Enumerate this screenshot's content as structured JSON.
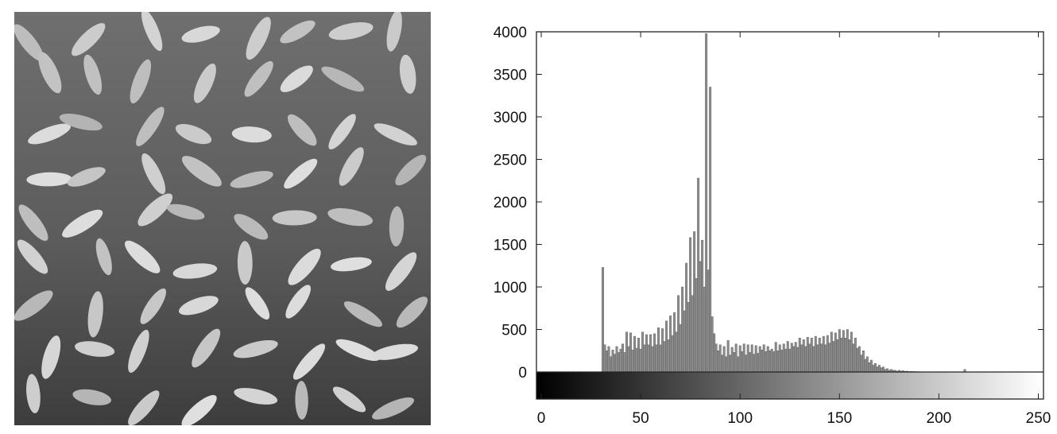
{
  "image": {
    "subject": "grayscale image of rice grains on a darker background"
  },
  "chart_data": {
    "type": "bar",
    "title": "",
    "xlabel": "",
    "ylabel": "",
    "xlim": [
      0,
      255
    ],
    "ylim": [
      0,
      4000
    ],
    "xticks": [
      0,
      50,
      100,
      150,
      200,
      250
    ],
    "yticks": [
      0,
      500,
      1000,
      1500,
      2000,
      2500,
      3000,
      3500,
      4000
    ],
    "grid": false,
    "legend": "none",
    "colorbar": "grayscale ramp 0 (black) to 255 (white) under the x axis",
    "bins": [
      [
        31,
        1230
      ],
      [
        32,
        320
      ],
      [
        33,
        250
      ],
      [
        34,
        300
      ],
      [
        35,
        180
      ],
      [
        36,
        260
      ],
      [
        37,
        210
      ],
      [
        38,
        300
      ],
      [
        39,
        230
      ],
      [
        40,
        270
      ],
      [
        41,
        330
      ],
      [
        42,
        230
      ],
      [
        43,
        470
      ],
      [
        44,
        300
      ],
      [
        45,
        460
      ],
      [
        46,
        260
      ],
      [
        47,
        420
      ],
      [
        48,
        280
      ],
      [
        49,
        400
      ],
      [
        50,
        270
      ],
      [
        51,
        470
      ],
      [
        52,
        320
      ],
      [
        53,
        440
      ],
      [
        54,
        320
      ],
      [
        55,
        440
      ],
      [
        56,
        300
      ],
      [
        57,
        450
      ],
      [
        58,
        320
      ],
      [
        59,
        520
      ],
      [
        60,
        320
      ],
      [
        61,
        510
      ],
      [
        62,
        360
      ],
      [
        63,
        600
      ],
      [
        64,
        380
      ],
      [
        65,
        660
      ],
      [
        66,
        430
      ],
      [
        67,
        700
      ],
      [
        68,
        470
      ],
      [
        69,
        900
      ],
      [
        70,
        560
      ],
      [
        71,
        1000
      ],
      [
        72,
        720
      ],
      [
        73,
        1280
      ],
      [
        74,
        820
      ],
      [
        75,
        1580
      ],
      [
        76,
        900
      ],
      [
        77,
        1650
      ],
      [
        78,
        1100
      ],
      [
        79,
        2280
      ],
      [
        80,
        1300
      ],
      [
        81,
        1550
      ],
      [
        82,
        1000
      ],
      [
        83,
        3980
      ],
      [
        84,
        1200
      ],
      [
        85,
        3350
      ],
      [
        86,
        650
      ],
      [
        87,
        450
      ],
      [
        88,
        330
      ],
      [
        89,
        250
      ],
      [
        90,
        320
      ],
      [
        91,
        200
      ],
      [
        92,
        300
      ],
      [
        93,
        180
      ],
      [
        94,
        370
      ],
      [
        95,
        200
      ],
      [
        96,
        290
      ],
      [
        97,
        230
      ],
      [
        98,
        330
      ],
      [
        99,
        180
      ],
      [
        100,
        310
      ],
      [
        101,
        240
      ],
      [
        102,
        330
      ],
      [
        103,
        200
      ],
      [
        104,
        320
      ],
      [
        105,
        230
      ],
      [
        106,
        320
      ],
      [
        107,
        210
      ],
      [
        108,
        310
      ],
      [
        109,
        220
      ],
      [
        110,
        300
      ],
      [
        111,
        260
      ],
      [
        112,
        320
      ],
      [
        113,
        240
      ],
      [
        114,
        300
      ],
      [
        115,
        250
      ],
      [
        116,
        270
      ],
      [
        117,
        240
      ],
      [
        118,
        350
      ],
      [
        119,
        250
      ],
      [
        120,
        320
      ],
      [
        121,
        260
      ],
      [
        122,
        330
      ],
      [
        123,
        270
      ],
      [
        124,
        360
      ],
      [
        125,
        270
      ],
      [
        126,
        340
      ],
      [
        127,
        300
      ],
      [
        128,
        350
      ],
      [
        129,
        290
      ],
      [
        130,
        400
      ],
      [
        131,
        320
      ],
      [
        132,
        380
      ],
      [
        133,
        300
      ],
      [
        134,
        410
      ],
      [
        135,
        330
      ],
      [
        136,
        400
      ],
      [
        137,
        300
      ],
      [
        138,
        420
      ],
      [
        139,
        320
      ],
      [
        140,
        400
      ],
      [
        141,
        330
      ],
      [
        142,
        420
      ],
      [
        143,
        320
      ],
      [
        144,
        430
      ],
      [
        145,
        340
      ],
      [
        146,
        470
      ],
      [
        147,
        360
      ],
      [
        148,
        460
      ],
      [
        149,
        380
      ],
      [
        150,
        500
      ],
      [
        151,
        400
      ],
      [
        152,
        490
      ],
      [
        153,
        400
      ],
      [
        154,
        500
      ],
      [
        155,
        380
      ],
      [
        156,
        470
      ],
      [
        157,
        330
      ],
      [
        158,
        400
      ],
      [
        159,
        280
      ],
      [
        160,
        300
      ],
      [
        161,
        200
      ],
      [
        162,
        250
      ],
      [
        163,
        150
      ],
      [
        164,
        180
      ],
      [
        165,
        110
      ],
      [
        166,
        140
      ],
      [
        167,
        80
      ],
      [
        168,
        100
      ],
      [
        169,
        60
      ],
      [
        170,
        80
      ],
      [
        171,
        50
      ],
      [
        172,
        60
      ],
      [
        173,
        30
      ],
      [
        174,
        40
      ],
      [
        175,
        20
      ],
      [
        176,
        30
      ],
      [
        177,
        20
      ],
      [
        178,
        20
      ],
      [
        179,
        10
      ],
      [
        180,
        20
      ],
      [
        181,
        10
      ],
      [
        182,
        15
      ],
      [
        183,
        8
      ],
      [
        184,
        10
      ],
      [
        185,
        5
      ],
      [
        186,
        8
      ],
      [
        187,
        5
      ],
      [
        188,
        5
      ],
      [
        189,
        4
      ],
      [
        190,
        4
      ],
      [
        191,
        3
      ],
      [
        192,
        3
      ],
      [
        193,
        2
      ],
      [
        194,
        3
      ],
      [
        195,
        2
      ],
      [
        196,
        2
      ],
      [
        197,
        2
      ],
      [
        198,
        2
      ],
      [
        199,
        1
      ],
      [
        200,
        2
      ],
      [
        201,
        1
      ],
      [
        202,
        1
      ],
      [
        203,
        1
      ],
      [
        204,
        1
      ],
      [
        205,
        1
      ],
      [
        206,
        1
      ],
      [
        207,
        1
      ],
      [
        208,
        1
      ],
      [
        209,
        1
      ],
      [
        210,
        1
      ],
      [
        211,
        1
      ],
      [
        212,
        1
      ],
      [
        213,
        30
      ],
      [
        214,
        1
      ],
      [
        215,
        1
      ],
      [
        216,
        1
      ],
      [
        217,
        1
      ],
      [
        218,
        1
      ],
      [
        219,
        1
      ],
      [
        220,
        1
      ]
    ]
  },
  "colors": {
    "axis": "#222222",
    "bar": "#8c8c8c",
    "bar_edge": "#555555",
    "background": "#ffffff"
  }
}
